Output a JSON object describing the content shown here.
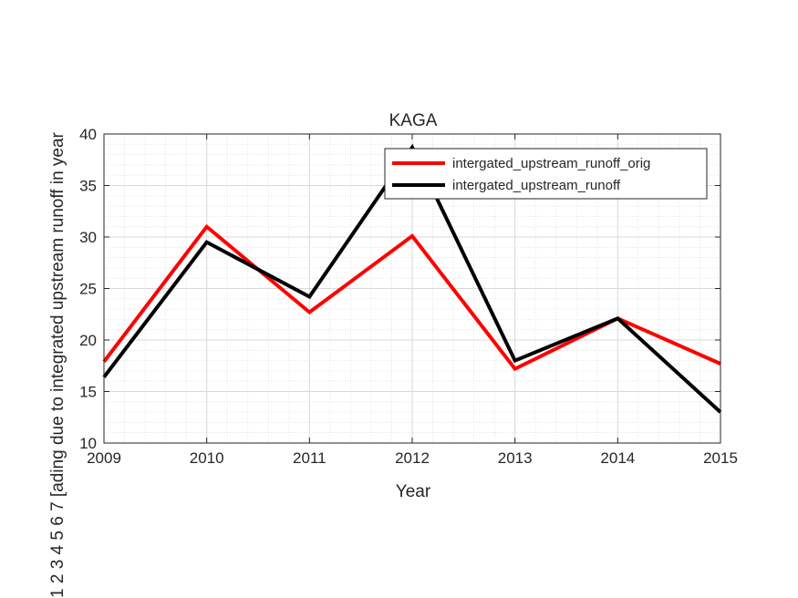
{
  "chart_data": {
    "type": "line",
    "title": "KAGA",
    "xlabel": "Year",
    "ylabel": "1 2 3 4 5 6 7 [ading due to integrated upstream runoff in year",
    "x": [
      2009,
      2010,
      2011,
      2012,
      2013,
      2014,
      2015
    ],
    "xlim": [
      2009,
      2015
    ],
    "ylim": [
      10,
      40
    ],
    "xticks": [
      2009,
      2010,
      2011,
      2012,
      2013,
      2014,
      2015
    ],
    "yticks": [
      10,
      15,
      20,
      25,
      30,
      35,
      40
    ],
    "grid": true,
    "minor_grid": true,
    "legend_position": "top-right",
    "series": [
      {
        "name": "intergated_upstream_runoff_orig",
        "color": "#ff0000",
        "values": [
          17.9,
          31.0,
          22.7,
          30.1,
          17.2,
          22.1,
          17.7
        ]
      },
      {
        "name": "intergated_upstream_runoff",
        "color": "#000000",
        "values": [
          16.4,
          29.5,
          24.2,
          38.7,
          18.0,
          22.1,
          13.0
        ]
      }
    ]
  }
}
